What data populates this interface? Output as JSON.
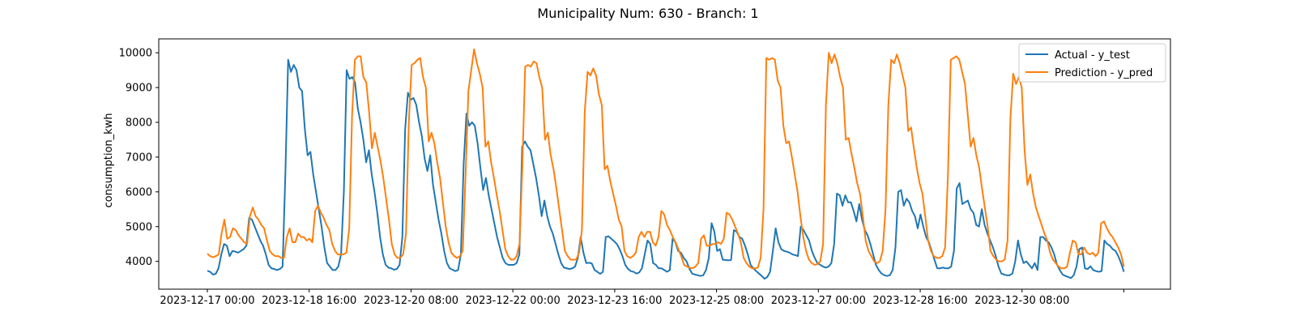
{
  "chart_data": {
    "type": "line",
    "title": "Municipality Num: 630 - Branch: 1",
    "xlabel": "",
    "ylabel": "consumption_kwh",
    "ylim": [
      3200,
      10400
    ],
    "yticks": [
      4000,
      5000,
      6000,
      7000,
      8000,
      9000,
      10000
    ],
    "xticks": [
      "2023-12-17 00:00",
      "2023-12-18 16:00",
      "2023-12-20 08:00",
      "2023-12-22 00:00",
      "2023-12-23 16:00",
      "2023-12-25 08:00",
      "2023-12-27 00:00",
      "2023-12-28 16:00",
      "2023-12-30 08:00",
      ""
    ],
    "x_start": "2023-12-17 00:00",
    "x_interval_hours": 2,
    "grid": false,
    "legend_position": "top-right",
    "series": [
      {
        "name": "Actual - y_test",
        "color": "#1f77b4",
        "values": [
          3730,
          3700,
          3620,
          3640,
          3800,
          4200,
          4500,
          4450,
          4150,
          4300,
          4280,
          4250,
          4300,
          4350,
          4450,
          5250,
          5200,
          5000,
          4800,
          4600,
          4450,
          4200,
          3900,
          3800,
          3780,
          3750,
          3780,
          3850,
          6500,
          9800,
          9450,
          9650,
          9500,
          9000,
          8900,
          7800,
          7050,
          7150,
          6500,
          6000,
          5500,
          5000,
          4400,
          3950,
          3850,
          3750,
          3750,
          3850,
          4200,
          6000,
          9500,
          9250,
          9300,
          9150,
          8400,
          8000,
          7500,
          6850,
          7200,
          6500,
          6000,
          5400,
          4700,
          4200,
          3900,
          3820,
          3800,
          3760,
          3780,
          3900,
          4700,
          7800,
          8850,
          8650,
          8700,
          8500,
          8000,
          7600,
          6950,
          6600,
          7050,
          6200,
          5700,
          5200,
          4800,
          4300,
          3950,
          3800,
          3760,
          3720,
          3750,
          4200,
          6800,
          8250,
          7900,
          8000,
          7900,
          7400,
          6700,
          6050,
          6400,
          5900,
          5500,
          5100,
          4700,
          4400,
          4100,
          3950,
          3900,
          3900,
          3900,
          3950,
          4200,
          7300,
          7450,
          7300,
          7200,
          6800,
          6400,
          5900,
          5300,
          5750,
          5300,
          5000,
          4800,
          4500,
          4200,
          3950,
          3820,
          3800,
          3780,
          3800,
          3850,
          4100,
          4700,
          4250,
          3950,
          3960,
          3940,
          3750,
          3700,
          3640,
          3700,
          4700,
          4720,
          4650,
          4580,
          4500,
          4350,
          4150,
          3900,
          3780,
          3720,
          3700,
          3650,
          3680,
          3800,
          4200,
          4600,
          4500,
          3950,
          3900,
          3800,
          3800,
          3750,
          3700,
          3750,
          4650,
          4550,
          4300,
          4250,
          4100,
          4000,
          3800,
          3650,
          3620,
          3600,
          3580,
          3600,
          3750,
          4100,
          5100,
          4850,
          4300,
          4350,
          4050,
          4040,
          4030,
          4040,
          4900,
          4850,
          4700,
          4650,
          4450,
          4200,
          3900,
          3800,
          3720,
          3650,
          3580,
          3500,
          3550,
          3700,
          4300,
          4950,
          4550,
          4350,
          4300,
          4280,
          4250,
          4200,
          4180,
          4150,
          5000,
          4900,
          4750,
          4600,
          4300,
          4100,
          3950,
          3900,
          3850,
          3820,
          3850,
          3950,
          4500,
          5950,
          5900,
          5600,
          5900,
          5700,
          5700,
          5450,
          5150,
          5650,
          5200,
          4900,
          4750,
          4500,
          4200,
          3900,
          3750,
          3650,
          3600,
          3580,
          3600,
          3750,
          4400,
          6000,
          6050,
          5600,
          5800,
          5700,
          5450,
          5300,
          4950,
          5350,
          5000,
          4700,
          4550,
          4300,
          4050,
          3800,
          3800,
          3820,
          3800,
          3800,
          3850,
          4300,
          6100,
          6250,
          5650,
          5700,
          5750,
          5500,
          5400,
          5050,
          5000,
          5500,
          5050,
          4800,
          4600,
          4400,
          4150,
          3850,
          3650,
          3620,
          3600,
          3600,
          3650,
          4000,
          4600,
          4200,
          3950,
          4000,
          3900,
          3800,
          3950,
          3750,
          4700,
          4700,
          4600,
          4550,
          4400,
          4200,
          3900,
          3750,
          3620,
          3580,
          3550,
          3520,
          3600,
          3850,
          4350,
          4400,
          3800,
          3780,
          3860,
          3750,
          3720,
          3700,
          3720,
          4600,
          4500,
          4450,
          4350,
          4300,
          4150,
          3950,
          3700
        ]
      },
      {
        "name": "Prediction - y_pred",
        "color": "#ff7f0e",
        "values": [
          4220,
          4150,
          4120,
          4150,
          4200,
          4800,
          5200,
          4650,
          4700,
          4950,
          4900,
          4750,
          4650,
          4550,
          4500,
          5300,
          5550,
          5300,
          5200,
          5050,
          4950,
          4600,
          4300,
          4200,
          4150,
          4150,
          4100,
          4100,
          4700,
          4950,
          4550,
          4550,
          4800,
          4700,
          4700,
          4600,
          4650,
          4550,
          5450,
          5600,
          5400,
          5250,
          5050,
          4900,
          4500,
          4300,
          4200,
          4200,
          4200,
          4250,
          4950,
          8200,
          9800,
          9900,
          9900,
          9300,
          9150,
          8300,
          7250,
          7700,
          7300,
          6900,
          6400,
          5800,
          5200,
          4500,
          4200,
          4100,
          4100,
          4200,
          4800,
          8000,
          9650,
          9700,
          9800,
          9850,
          9300,
          9000,
          7450,
          7700,
          7400,
          6850,
          6400,
          5700,
          5000,
          4550,
          4250,
          4150,
          4100,
          4150,
          4300,
          6500,
          8900,
          9500,
          10100,
          9700,
          9400,
          9000,
          7300,
          7450,
          6850,
          6400,
          5900,
          5450,
          4900,
          4350,
          4150,
          4050,
          4050,
          4150,
          4500,
          6700,
          9600,
          9650,
          9600,
          9750,
          9700,
          9300,
          9000,
          7500,
          7700,
          7050,
          6650,
          6100,
          5500,
          4900,
          4300,
          4150,
          4050,
          4050,
          4050,
          4250,
          4900,
          8300,
          9450,
          9350,
          9550,
          9350,
          8800,
          8500,
          6650,
          6750,
          6300,
          5950,
          5600,
          5200,
          5000,
          4300,
          4150,
          4100,
          4150,
          4250,
          4700,
          4850,
          4700,
          4850,
          4850,
          4550,
          4450,
          4700,
          5450,
          5350,
          5050,
          4900,
          4700,
          4550,
          4350,
          4150,
          3900,
          3850,
          3820,
          3800,
          3850,
          3950,
          4650,
          4750,
          4450,
          4450,
          4500,
          4500,
          4550,
          4500,
          4650,
          5400,
          5350,
          5200,
          5000,
          4800,
          4550,
          4100,
          3950,
          3850,
          3800,
          3800,
          3820,
          4100,
          5500,
          9850,
          9800,
          9850,
          9800,
          9200,
          9000,
          7900,
          7400,
          7450,
          7000,
          6500,
          6000,
          5300,
          4700,
          4300,
          4050,
          3950,
          3900,
          3920,
          4000,
          4500,
          8500,
          10000,
          9700,
          9950,
          9700,
          9300,
          9000,
          7500,
          7550,
          7100,
          6700,
          6250,
          5950,
          5300,
          4600,
          4300,
          4150,
          4000,
          3950,
          4000,
          4300,
          5500,
          8500,
          9800,
          9700,
          9950,
          9700,
          9350,
          9000,
          7750,
          7850,
          7250,
          6700,
          6250,
          5950,
          5300,
          4600,
          4300,
          4150,
          4100,
          4100,
          4150,
          4400,
          6500,
          9800,
          9850,
          9900,
          9800,
          9450,
          9100,
          8200,
          7300,
          7550,
          7050,
          6700,
          6100,
          5550,
          5000,
          4300,
          4150,
          4050,
          4000,
          4000,
          4050,
          4600,
          8100,
          9400,
          9100,
          9300,
          9000,
          7200,
          6200,
          6500,
          5950,
          5550,
          5300,
          5050,
          4800,
          4600,
          4250,
          4050,
          3950,
          3850,
          3800,
          3800,
          3850,
          4250,
          4600,
          4550,
          4200,
          4200,
          4400,
          4250,
          4200,
          4250,
          4150,
          4250,
          5100,
          5150,
          4950,
          4800,
          4700,
          4550,
          4400,
          4200,
          3850
        ]
      }
    ]
  }
}
